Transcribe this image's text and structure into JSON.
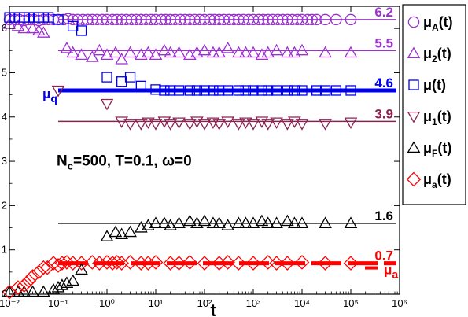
{
  "chart_data": {
    "type": "scatter",
    "xlabel": "t",
    "ylabel": "",
    "xscale": "log",
    "xlim": [
      0.01,
      1000000
    ],
    "ylim": [
      0,
      6.5
    ],
    "xticks": [
      "10⁻²",
      "10⁻¹",
      "10⁰",
      "10¹",
      "10²",
      "10³",
      "10⁴",
      "10⁵",
      "10⁶"
    ],
    "yticks": [
      "0",
      "1",
      "2",
      "3",
      "4",
      "5",
      "6"
    ],
    "annotation": "N_c=500, T=0.1, ω=0",
    "legend_placement": "right",
    "series": [
      {
        "name": "μ_A(t)",
        "marker": "circle",
        "color": "#9A32CD",
        "x": [
          0.01,
          0.013,
          0.016,
          0.02,
          0.025,
          0.032,
          0.04,
          0.05,
          0.063,
          0.08,
          0.1,
          0.13,
          0.16,
          0.2,
          0.25,
          0.32,
          0.4,
          0.5,
          0.63,
          0.8,
          1,
          1.3,
          1.6,
          2,
          2.5,
          3.2,
          4,
          5,
          6.3,
          8,
          10,
          13,
          16,
          20,
          25,
          32,
          40,
          50,
          63,
          80,
          100,
          130,
          160,
          200,
          250,
          320,
          400,
          500,
          630,
          800,
          1000,
          1300,
          1600,
          2000,
          2500,
          3200,
          4000,
          5000,
          6300,
          8000,
          10000,
          13000,
          16000,
          20000,
          30000,
          50000,
          100000
        ],
        "y": [
          6.2,
          6.2,
          6.2,
          6.18,
          6.2,
          6.2,
          6.18,
          6.2,
          6.2,
          6.2,
          6.2,
          6.2,
          6.22,
          6.2,
          6.2,
          6.2,
          6.2,
          6.2,
          6.2,
          6.2,
          6.2,
          6.2,
          6.2,
          6.2,
          6.2,
          6.2,
          6.2,
          6.2,
          6.2,
          6.2,
          6.2,
          6.2,
          6.2,
          6.2,
          6.2,
          6.2,
          6.2,
          6.2,
          6.2,
          6.2,
          6.2,
          6.2,
          6.2,
          6.2,
          6.2,
          6.2,
          6.2,
          6.2,
          6.2,
          6.2,
          6.2,
          6.2,
          6.2,
          6.2,
          6.2,
          6.2,
          6.2,
          6.2,
          6.2,
          6.2,
          6.2,
          6.2,
          6.2,
          6.2,
          6.2,
          6.2,
          6.2
        ]
      },
      {
        "name": "μ_2(t)",
        "marker": "triangle-up",
        "color": "#9A32CD",
        "x": [
          0.01,
          0.015,
          0.02,
          0.03,
          0.04,
          0.05,
          0.15,
          0.2,
          0.3,
          0.5,
          0.7,
          1,
          1.5,
          2,
          3,
          5,
          7,
          10,
          15,
          20,
          30,
          50,
          70,
          100,
          150,
          200,
          300,
          500,
          700,
          1000,
          1500,
          2000,
          3000,
          5000,
          7000,
          10000,
          30000,
          100000
        ],
        "y": [
          6.1,
          6.05,
          6.0,
          6.0,
          5.95,
          5.9,
          5.55,
          5.45,
          5.4,
          5.35,
          5.5,
          5.4,
          5.45,
          5.3,
          5.45,
          5.4,
          5.45,
          5.4,
          5.5,
          5.45,
          5.45,
          5.4,
          5.45,
          5.5,
          5.45,
          5.45,
          5.55,
          5.45,
          5.45,
          5.45,
          5.4,
          5.45,
          5.5,
          5.45,
          5.45,
          5.5,
          5.45,
          5.45
        ]
      },
      {
        "name": "μ(t)",
        "marker": "square",
        "color": "#0000EE",
        "x": [
          0.01,
          0.013,
          0.016,
          0.02,
          0.025,
          0.032,
          0.04,
          0.05,
          0.063,
          0.1,
          0.2,
          0.3,
          1,
          2,
          3,
          5,
          10,
          15,
          20,
          30,
          50,
          70,
          100,
          150,
          200,
          300,
          500,
          700,
          1000,
          1500,
          2000,
          3000,
          5000,
          7000,
          10000,
          20000,
          30000,
          50000,
          100000
        ],
        "y": [
          6.25,
          6.25,
          6.25,
          6.25,
          6.25,
          6.25,
          6.25,
          6.25,
          6.25,
          6.2,
          6.05,
          5.95,
          4.9,
          4.8,
          4.9,
          4.7,
          4.62,
          4.6,
          4.6,
          4.6,
          4.6,
          4.6,
          4.6,
          4.6,
          4.6,
          4.6,
          4.6,
          4.6,
          4.6,
          4.6,
          4.6,
          4.6,
          4.6,
          4.6,
          4.6,
          4.6,
          4.6,
          4.6,
          4.6
        ]
      },
      {
        "name": "μ_1(t)",
        "marker": "triangle-down",
        "color": "#8B2252",
        "x": [
          0.1,
          1,
          2,
          3,
          5,
          7,
          10,
          15,
          20,
          30,
          50,
          70,
          100,
          150,
          200,
          300,
          500,
          700,
          1000,
          1500,
          2000,
          3000,
          5000,
          7000,
          10000,
          30000,
          100000
        ],
        "y": [
          4.6,
          4.3,
          3.9,
          3.85,
          3.85,
          3.88,
          3.85,
          3.9,
          3.85,
          3.88,
          3.85,
          3.9,
          3.85,
          3.88,
          3.85,
          3.9,
          3.85,
          3.88,
          3.85,
          3.9,
          3.85,
          3.88,
          3.85,
          3.9,
          3.85,
          3.85,
          3.88
        ]
      },
      {
        "name": "μ_F(t)",
        "marker": "triangle-up",
        "color": "#000000",
        "x": [
          0.01,
          0.015,
          0.02,
          0.03,
          0.05,
          0.08,
          0.1,
          0.12,
          0.15,
          0.2,
          0.3,
          1,
          1.5,
          2,
          3,
          5,
          7,
          10,
          15,
          20,
          30,
          50,
          70,
          100,
          150,
          200,
          300,
          500,
          700,
          1000,
          1500,
          2000,
          3000,
          5000,
          7000,
          10000,
          30000,
          100000
        ],
        "y": [
          0.05,
          0.05,
          0.05,
          0.05,
          0.05,
          0.1,
          0.15,
          0.2,
          0.25,
          0.3,
          0.55,
          1.3,
          1.4,
          1.35,
          1.4,
          1.5,
          1.55,
          1.6,
          1.6,
          1.55,
          1.6,
          1.65,
          1.6,
          1.65,
          1.6,
          1.6,
          1.55,
          1.6,
          1.6,
          1.6,
          1.65,
          1.6,
          1.6,
          1.65,
          1.6,
          1.6,
          1.6,
          1.6
        ]
      },
      {
        "name": "μ_a(t)",
        "marker": "diamond",
        "color": "#FF0000",
        "x": [
          0.01,
          0.015,
          0.02,
          0.025,
          0.03,
          0.04,
          0.05,
          0.06,
          0.08,
          0.1,
          0.12,
          0.15,
          0.2,
          0.3,
          0.5,
          0.7,
          1,
          1.3,
          1.6,
          2,
          3,
          5,
          7,
          10,
          20,
          30,
          50,
          100,
          200,
          300,
          500,
          1000,
          2000,
          3000,
          5000,
          10000,
          30000,
          100000
        ],
        "y": [
          0.05,
          0.15,
          0.2,
          0.3,
          0.4,
          0.5,
          0.6,
          0.6,
          0.7,
          0.65,
          0.7,
          0.72,
          0.7,
          0.7,
          0.72,
          0.7,
          0.72,
          0.7,
          0.72,
          0.7,
          0.72,
          0.7,
          0.7,
          0.72,
          0.7,
          0.7,
          0.72,
          0.7,
          0.7,
          0.72,
          0.7,
          0.7,
          0.72,
          0.7,
          0.7,
          0.72,
          0.7,
          0.7
        ]
      }
    ],
    "reference_lines": [
      {
        "value": 6.2,
        "label": "6.2",
        "color": "#9A32CD",
        "x_from": 0.1,
        "x_to": 1000000,
        "style": "solid",
        "width": "thin"
      },
      {
        "value": 5.5,
        "label": "5.5",
        "color": "#9A32CD",
        "x_from": 0.1,
        "x_to": 1000000,
        "style": "solid",
        "width": "thin"
      },
      {
        "value": 4.6,
        "label": "4.6",
        "color": "#0000EE",
        "x_from": 0.1,
        "x_to": 1000000,
        "style": "solid",
        "width": "thick",
        "side_label": "μ_q"
      },
      {
        "value": 3.9,
        "label": "3.9",
        "color": "#8B2252",
        "x_from": 0.1,
        "x_to": 1000000,
        "style": "solid",
        "width": "thin"
      },
      {
        "value": 1.6,
        "label": "1.6",
        "color": "#000000",
        "x_from": 0.1,
        "x_to": 1000000,
        "style": "solid",
        "width": "thin"
      },
      {
        "value": 0.7,
        "label": "0.7",
        "color": "#FF0000",
        "x_from": 0.1,
        "x_to": 1000000,
        "style": "dashed",
        "width": "thick",
        "side_label": "μ_a"
      }
    ]
  }
}
